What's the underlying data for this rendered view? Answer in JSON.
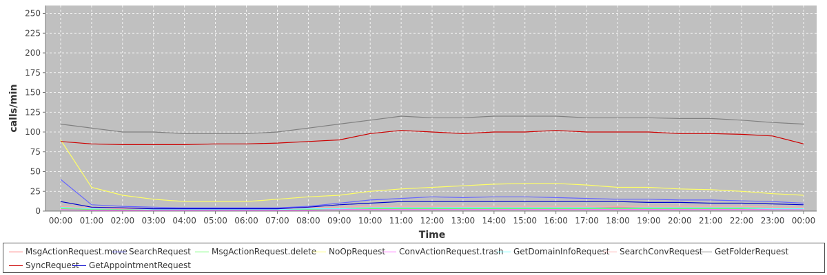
{
  "chart_data": {
    "type": "line",
    "title": "",
    "xlabel": "Time",
    "ylabel": "calls/min",
    "ylim": [
      0,
      260
    ],
    "yticks": [
      0,
      25,
      50,
      75,
      100,
      125,
      150,
      175,
      200,
      225,
      250
    ],
    "xticks": [
      "00:00",
      "01:00",
      "02:00",
      "03:00",
      "04:00",
      "05:00",
      "06:00",
      "07:00",
      "08:00",
      "09:00",
      "10:00",
      "11:00",
      "12:00",
      "13:00",
      "14:00",
      "15:00",
      "16:00",
      "17:00",
      "18:00",
      "19:00",
      "20:00",
      "21:00",
      "22:00",
      "23:00",
      "00:00"
    ],
    "grid": true,
    "legend_position": "bottom",
    "plot_background": "#c0c0c0",
    "series": [
      {
        "name": "MsgActionRequest.move",
        "color": "#ff6666",
        "values": [
          5,
          3,
          3,
          2,
          2,
          2,
          2,
          2,
          2,
          3,
          3,
          4,
          4,
          3,
          4,
          4,
          4,
          4,
          5,
          4,
          4,
          4,
          4,
          3,
          3
        ]
      },
      {
        "name": "SearchRequest",
        "color": "#6666ff",
        "values": [
          40,
          8,
          6,
          5,
          4,
          4,
          4,
          4,
          6,
          10,
          14,
          16,
          18,
          17,
          18,
          18,
          17,
          16,
          15,
          15,
          14,
          14,
          13,
          12,
          10
        ]
      },
      {
        "name": "MsgActionRequest.delete",
        "color": "#66ff66",
        "values": [
          3,
          2,
          2,
          1,
          1,
          1,
          1,
          1,
          2,
          2,
          3,
          3,
          3,
          3,
          3,
          3,
          3,
          3,
          3,
          3,
          3,
          3,
          3,
          2,
          2
        ]
      },
      {
        "name": "NoOpRequest",
        "color": "#ffff66",
        "values": [
          90,
          30,
          20,
          15,
          12,
          12,
          12,
          15,
          18,
          20,
          25,
          28,
          30,
          32,
          34,
          35,
          35,
          33,
          30,
          30,
          28,
          27,
          25,
          22,
          20
        ]
      },
      {
        "name": "ConvActionRequest.trash",
        "color": "#ff66ff",
        "values": [
          2,
          1,
          1,
          1,
          1,
          1,
          1,
          1,
          1,
          2,
          2,
          2,
          2,
          2,
          2,
          2,
          2,
          2,
          2,
          2,
          2,
          2,
          2,
          2,
          2
        ]
      },
      {
        "name": "GetDomainInfoRequest",
        "color": "#66ffff",
        "values": [
          5,
          3,
          3,
          2,
          2,
          2,
          2,
          2,
          3,
          3,
          4,
          4,
          4,
          4,
          4,
          4,
          4,
          4,
          4,
          4,
          4,
          4,
          4,
          3,
          3
        ]
      },
      {
        "name": "SearchConvRequest",
        "color": "#ffaaaa",
        "values": [
          6,
          4,
          3,
          3,
          3,
          3,
          3,
          3,
          4,
          5,
          6,
          6,
          6,
          6,
          6,
          6,
          6,
          6,
          6,
          6,
          6,
          6,
          6,
          5,
          5
        ]
      },
      {
        "name": "GetFolderRequest",
        "color": "#808080",
        "values": [
          110,
          105,
          100,
          100,
          98,
          98,
          98,
          100,
          105,
          110,
          115,
          120,
          118,
          118,
          120,
          120,
          120,
          118,
          118,
          118,
          117,
          117,
          115,
          112,
          110
        ]
      },
      {
        "name": "SyncRequest",
        "color": "#cc0000",
        "values": [
          88,
          85,
          84,
          84,
          84,
          85,
          85,
          86,
          88,
          90,
          98,
          102,
          100,
          98,
          100,
          100,
          102,
          100,
          100,
          100,
          98,
          98,
          97,
          95,
          85
        ]
      },
      {
        "name": "GetAppointmentRequest",
        "color": "#0000cc",
        "values": [
          12,
          5,
          4,
          3,
          3,
          3,
          3,
          3,
          5,
          8,
          10,
          12,
          12,
          12,
          12,
          12,
          12,
          12,
          12,
          11,
          11,
          10,
          10,
          9,
          8
        ]
      }
    ]
  }
}
